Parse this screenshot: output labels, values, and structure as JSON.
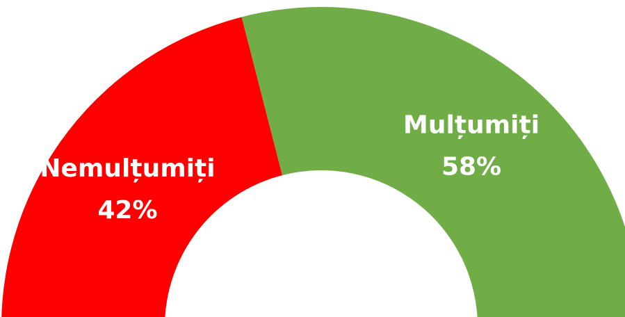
{
  "chart_data": {
    "type": "donut",
    "categories": [
      "Nemulțumiți",
      "Mulțumiți"
    ],
    "values": [
      42,
      58
    ],
    "value_labels": [
      "42%",
      "58%"
    ],
    "colors": [
      "#ff0000",
      "#70ad47"
    ]
  }
}
